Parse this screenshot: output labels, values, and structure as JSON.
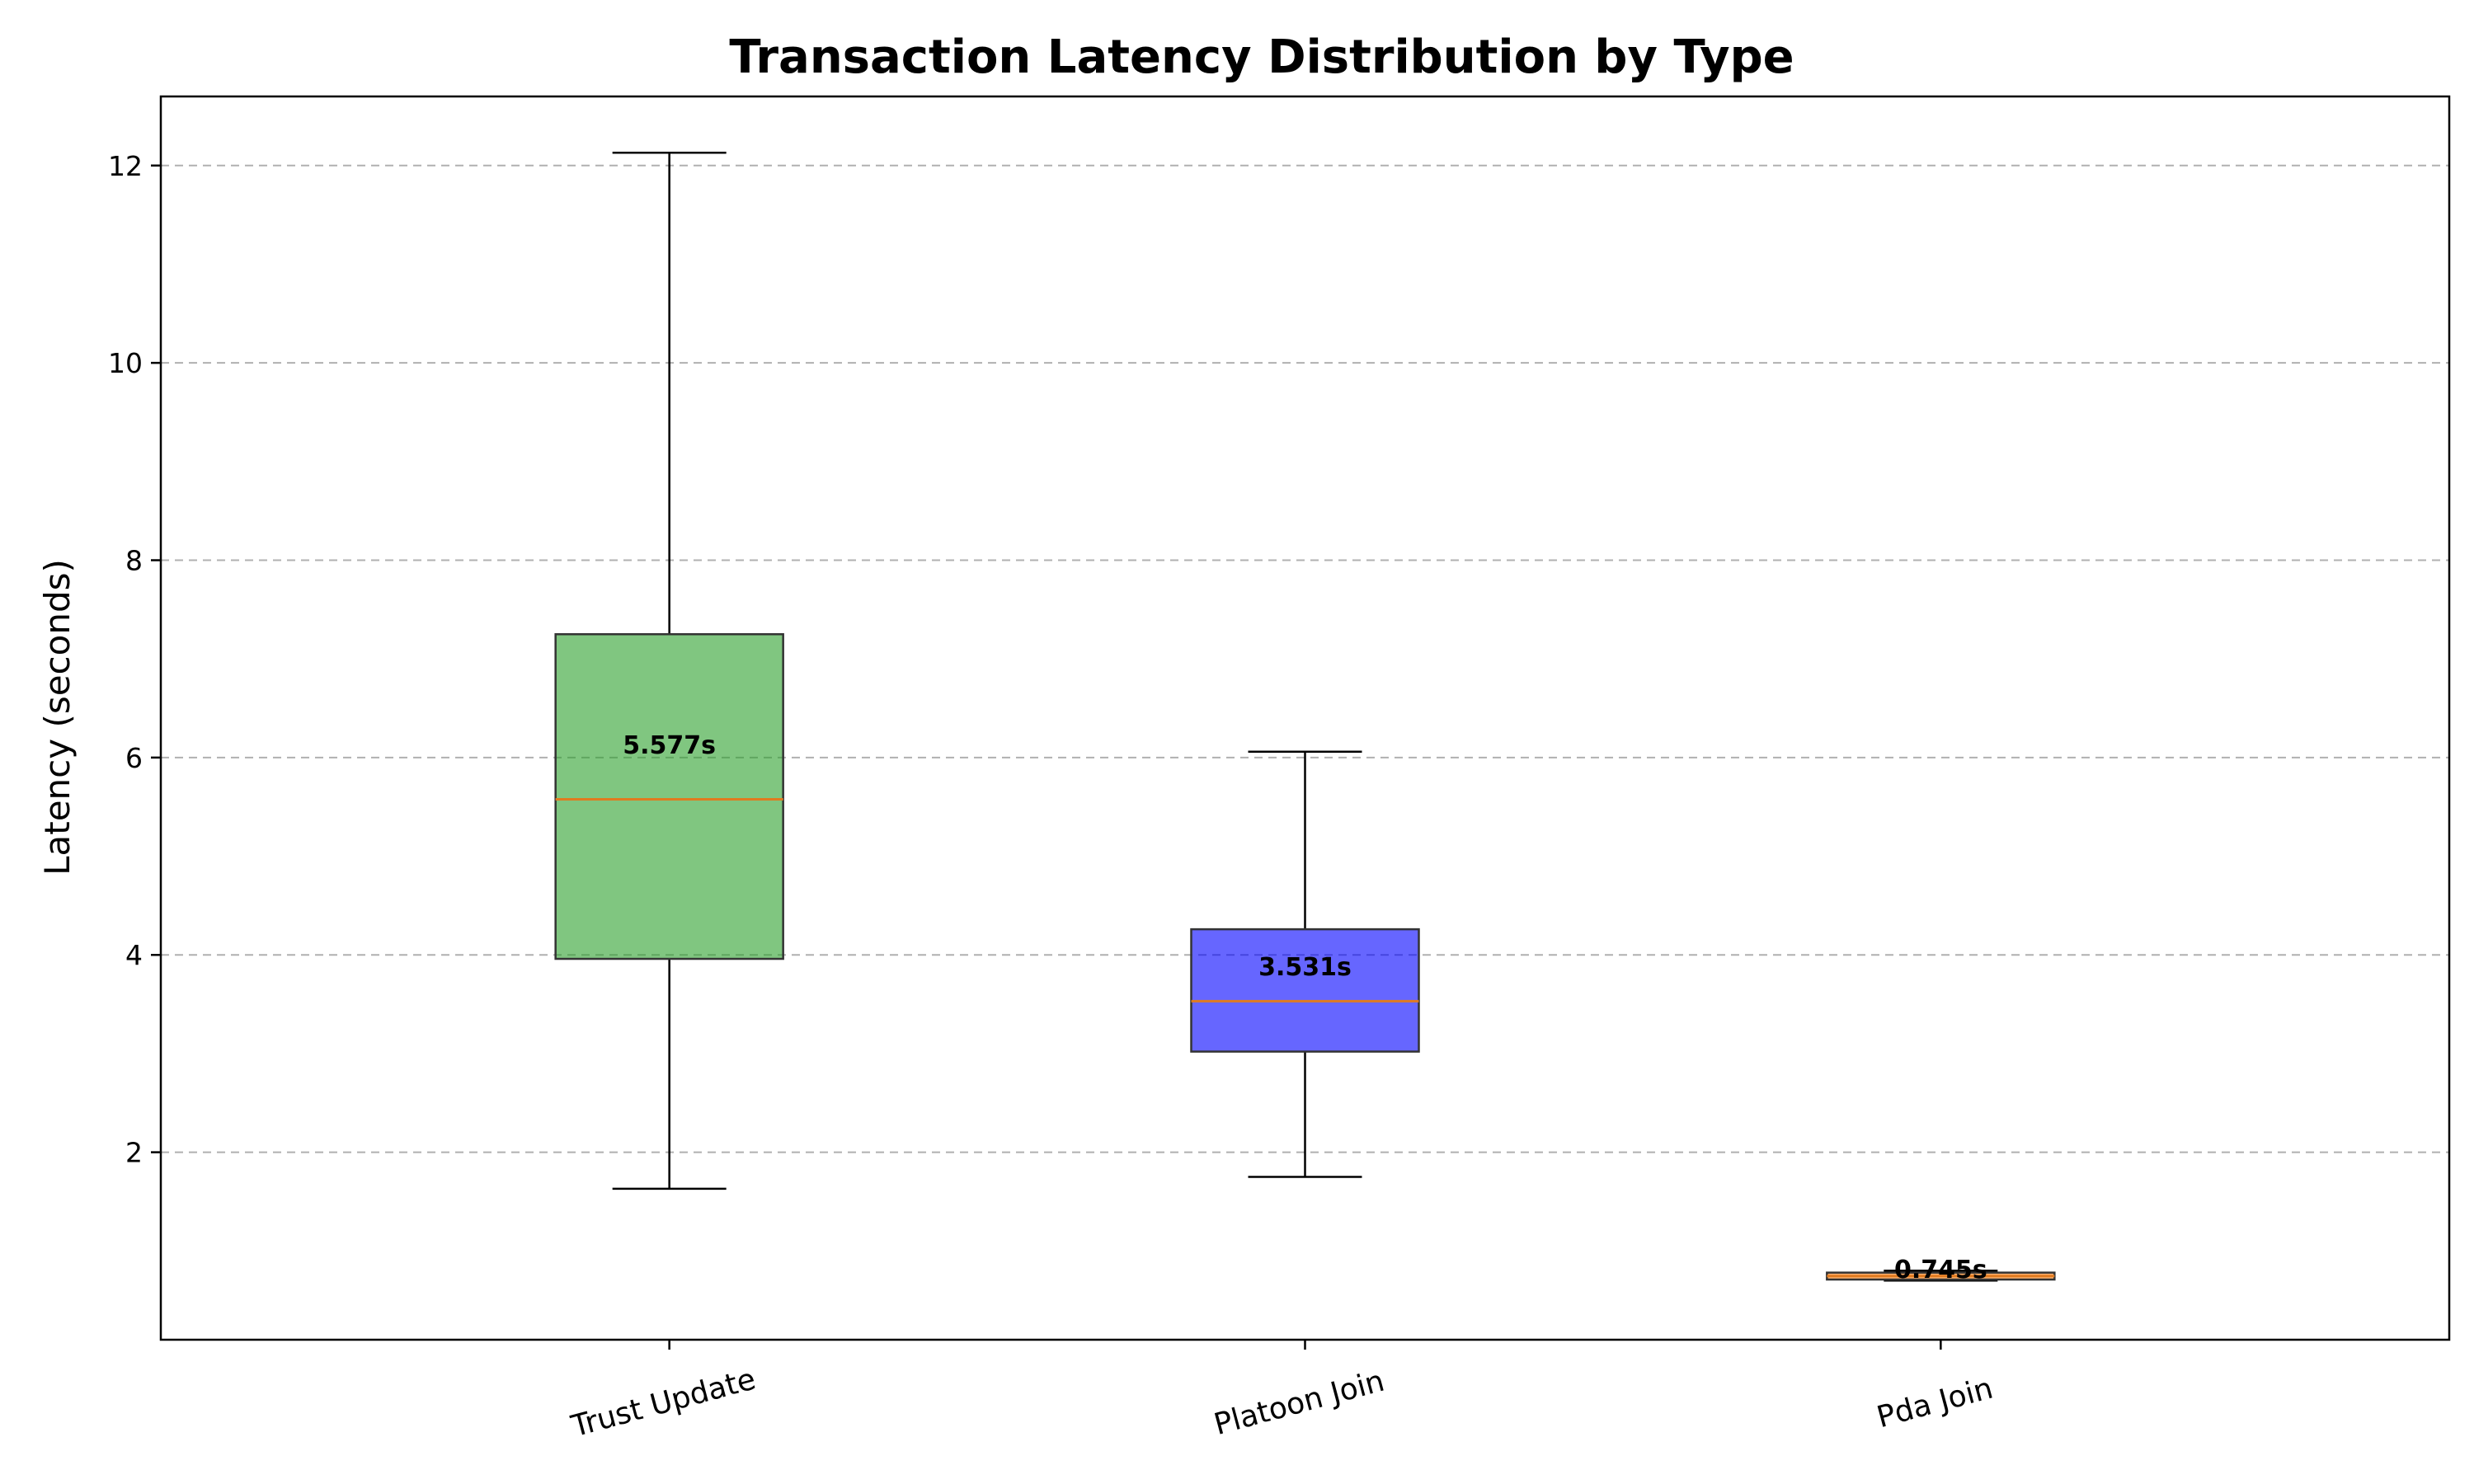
{
  "chart_data": {
    "type": "box",
    "title": "Transaction Latency Distribution by Type",
    "xlabel": "",
    "ylabel": "Latency (seconds)",
    "ylim": [
      0.1,
      12.7
    ],
    "yticks": [
      2,
      4,
      6,
      8,
      10,
      12
    ],
    "grid": "y-dashed",
    "categories": [
      "Trust Update",
      "Platoon Join",
      "Pda Join"
    ],
    "series": [
      {
        "category": "Trust Update",
        "whisker_low": 1.63,
        "q1": 3.96,
        "median": 5.577,
        "q3": 7.25,
        "whisker_high": 12.13,
        "median_label": "5.577s",
        "color": "#2ca02c"
      },
      {
        "category": "Platoon Join",
        "whisker_low": 1.75,
        "q1": 3.02,
        "median": 3.531,
        "q3": 4.26,
        "whisker_high": 6.06,
        "median_label": "3.531s",
        "color": "#0000ff"
      },
      {
        "category": "Pda Join",
        "whisker_low": 0.7,
        "q1": 0.71,
        "median": 0.745,
        "q3": 0.78,
        "whisker_high": 0.8,
        "median_label": "0.745s",
        "color": "#ff7f0e"
      }
    ],
    "median_line_color": "#e07b20"
  }
}
